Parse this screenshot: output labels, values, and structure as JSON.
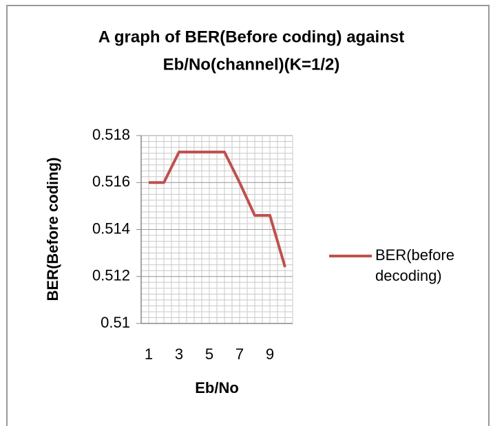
{
  "chart_data": {
    "type": "line",
    "title": [
      "A graph of BER(Before coding) against",
      "Eb/No(channel)(K=1/2)"
    ],
    "xlabel": "Eb/No",
    "ylabel": "BER(Before coding)",
    "categories": [
      1,
      null,
      3,
      null,
      5,
      null,
      7,
      null,
      9,
      null
    ],
    "series": [
      {
        "name": "BER(before decoding)",
        "color": "#c0504d",
        "values": [
          0.516,
          0.516,
          0.5173,
          0.5173,
          0.5173,
          0.5173,
          0.516,
          0.5146,
          0.5146,
          0.5124
        ]
      }
    ],
    "ylim": [
      0.51,
      0.518
    ],
    "yticks": [
      0.51,
      0.512,
      0.514,
      0.516,
      0.518
    ],
    "grid": true,
    "minor_grid": true,
    "legend": "right"
  }
}
